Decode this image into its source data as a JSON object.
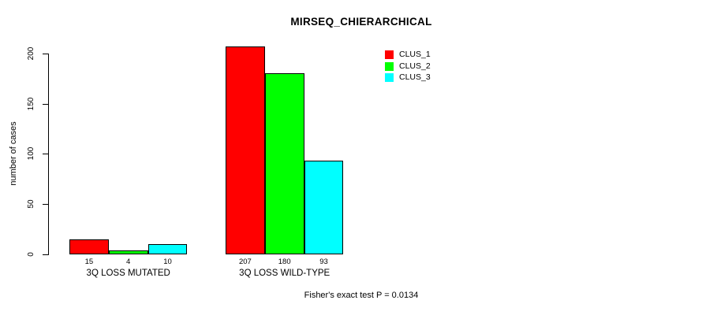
{
  "chart_data": {
    "type": "bar",
    "title": "MIRSEQ_CHIERARCHICAL",
    "ylabel": "number of cases",
    "xlabel": "",
    "categories": [
      "3Q LOSS MUTATED",
      "3Q LOSS WILD-TYPE"
    ],
    "series": [
      {
        "name": "CLUS_1",
        "color": "#FF0000",
        "values": [
          15,
          207
        ]
      },
      {
        "name": "CLUS_2",
        "color": "#00FF00",
        "values": [
          4,
          180
        ]
      },
      {
        "name": "CLUS_3",
        "color": "#00FFFF",
        "values": [
          10,
          93
        ]
      }
    ],
    "bar_value_labels": [
      [
        "15",
        "4",
        "10"
      ],
      [
        "207",
        "180",
        "93"
      ]
    ],
    "ylim": [
      0,
      200
    ],
    "yticks": [
      0,
      50,
      100,
      150,
      200
    ],
    "legend_position": "top-right",
    "legend_entries": [
      "CLUS_1",
      "CLUS_2",
      "CLUS_3"
    ],
    "annotation": "Fisher's exact test P = 0.0134",
    "grid": false,
    "text_color": "#000000",
    "background_color": "#FFFFFF"
  }
}
